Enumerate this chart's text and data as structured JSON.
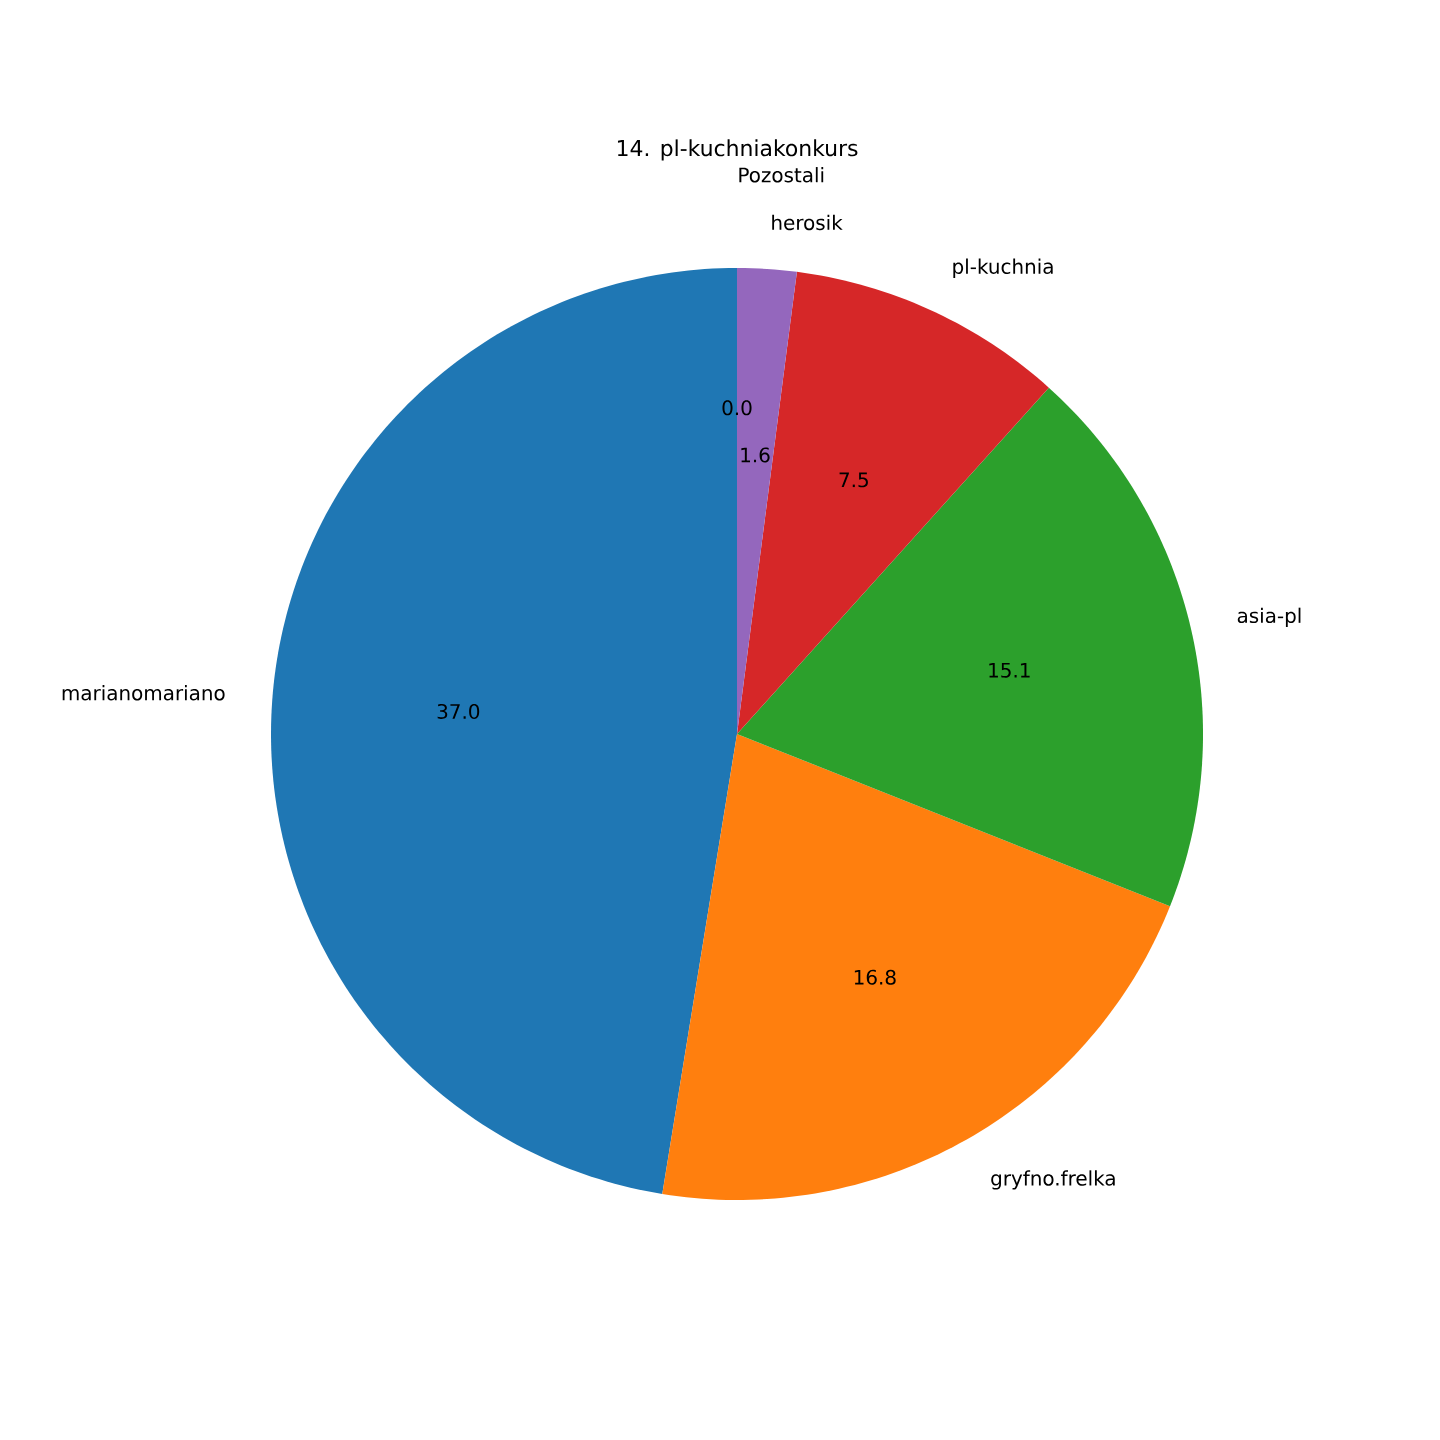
{
  "chart_data": {
    "type": "pie",
    "title": "14. pl-kuchniakonkurs",
    "categories": [
      "marianomariano",
      "gryfno.frelka",
      "asia-pl",
      "pl-kuchnia",
      "herosik",
      "Pozostali"
    ],
    "values": [
      37.0,
      16.8,
      15.1,
      7.5,
      1.6,
      0.0
    ],
    "value_labels": [
      "37.0",
      "16.8",
      "15.1",
      "7.5",
      "1.6",
      "0.0"
    ],
    "colors": [
      "#1f77b4",
      "#ff7f0e",
      "#2ca02c",
      "#d62728",
      "#9467bd",
      "#8c564b"
    ]
  }
}
